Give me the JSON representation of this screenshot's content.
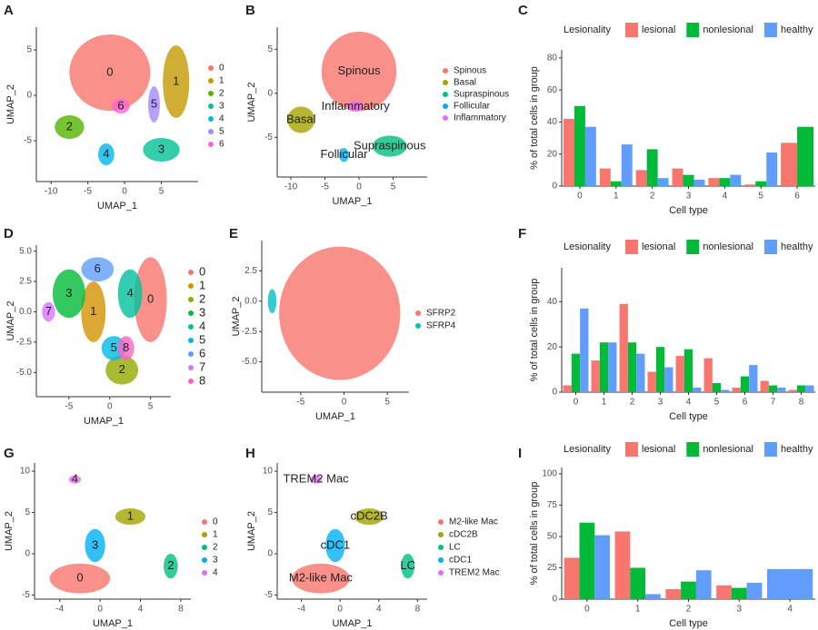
{
  "chart_data": [
    {
      "type": "scatter",
      "panel_label": "A",
      "xlabel": "UMAP_1",
      "ylabel": "UMAP_2",
      "xlim": [
        -12,
        10
      ],
      "ylim": [
        -9.5,
        7.5
      ],
      "xticks": [
        -10,
        -5,
        0,
        5
      ],
      "yticks": [
        -5,
        0,
        5
      ],
      "labels_on_plot": true,
      "series": [
        {
          "name": "0",
          "color": "#F8766D",
          "x": [
            -2
          ],
          "y": [
            2.5
          ],
          "spread": [
            5.5,
            4.2
          ]
        },
        {
          "name": "1",
          "color": "#C49A00",
          "x": [
            7
          ],
          "y": [
            1.5
          ],
          "spread": [
            1.8,
            4
          ]
        },
        {
          "name": "2",
          "color": "#53B400",
          "x": [
            -7.5
          ],
          "y": [
            -3.5
          ],
          "spread": [
            2,
            1.3
          ]
        },
        {
          "name": "3",
          "color": "#00C094",
          "x": [
            5
          ],
          "y": [
            -6
          ],
          "spread": [
            2.5,
            1.3
          ]
        },
        {
          "name": "4",
          "color": "#00B6EB",
          "x": [
            -2.5
          ],
          "y": [
            -6.5
          ],
          "spread": [
            1.1,
            1.2
          ]
        },
        {
          "name": "5",
          "color": "#A58AFF",
          "x": [
            4
          ],
          "y": [
            -1
          ],
          "spread": [
            0.8,
            2
          ]
        },
        {
          "name": "6",
          "color": "#FB61D7",
          "x": [
            -0.5
          ],
          "y": [
            -1.2
          ],
          "spread": [
            1.2,
            0.8
          ]
        }
      ]
    },
    {
      "type": "scatter",
      "panel_label": "B",
      "xlabel": "UMAP_1",
      "ylabel": "UMAP_2",
      "xlim": [
        -12,
        10
      ],
      "ylim": [
        -9.5,
        7.5
      ],
      "xticks": [
        -10,
        -5,
        0,
        5
      ],
      "yticks": [
        -5,
        0,
        5
      ],
      "labels_on_plot": true,
      "series": [
        {
          "name": "Spinous",
          "color": "#F8766D",
          "x": [
            0
          ],
          "y": [
            2.5
          ],
          "spread": [
            5.5,
            4.5
          ]
        },
        {
          "name": "Basal",
          "color": "#A3A500",
          "x": [
            -8.5
          ],
          "y": [
            -3
          ],
          "spread": [
            2,
            1.5
          ]
        },
        {
          "name": "Supraspinous",
          "color": "#00BF7D",
          "x": [
            4.5
          ],
          "y": [
            -6
          ],
          "spread": [
            2.5,
            1.2
          ]
        },
        {
          "name": "Follicular",
          "color": "#00B0F6",
          "x": [
            -2.2
          ],
          "y": [
            -7
          ],
          "spread": [
            0.7,
            0.8
          ]
        },
        {
          "name": "Inflammatory",
          "color": "#E76BF3",
          "x": [
            -0.5
          ],
          "y": [
            -1.5
          ],
          "spread": [
            1.2,
            0.6
          ]
        }
      ]
    },
    {
      "type": "bar",
      "panel_label": "C",
      "xlabel": "Cell type",
      "ylabel": "% of total cells in group",
      "legend_title": "Lesionality",
      "categories": [
        "0",
        "1",
        "2",
        "3",
        "4",
        "5",
        "6"
      ],
      "ylim": [
        0,
        85
      ],
      "yticks": [
        0,
        20,
        40,
        60,
        80
      ],
      "series": [
        {
          "name": "lesional",
          "color": "#F8766D",
          "values": [
            42,
            11,
            10,
            11,
            5,
            1,
            27
          ]
        },
        {
          "name": "nonlesional",
          "color": "#00BA38",
          "values": [
            50,
            3,
            23,
            7,
            5,
            3,
            37
          ]
        },
        {
          "name": "healthy",
          "color": "#619CFF",
          "values": [
            37,
            26,
            5,
            4,
            7,
            21,
            null
          ]
        }
      ]
    },
    {
      "type": "scatter",
      "panel_label": "D",
      "xlabel": "UMAP_1",
      "ylabel": "UMAP_2",
      "xlim": [
        -9,
        7.5
      ],
      "ylim": [
        -7,
        5.5
      ],
      "xticks": [
        -5,
        0,
        5
      ],
      "yticks": [
        {
          "value": -5,
          "label": "-5.0"
        },
        {
          "value": -2.5,
          "label": "-2.5"
        },
        {
          "value": 0,
          "label": "0.0"
        },
        {
          "value": 2.5,
          "label": "2.5"
        },
        {
          "value": 5,
          "label": "5.0"
        }
      ],
      "labels_on_plot": true,
      "series": [
        {
          "name": "0",
          "color": "#F8766D",
          "x": [
            5
          ],
          "y": [
            1
          ],
          "spread": [
            2,
            3.5
          ]
        },
        {
          "name": "1",
          "color": "#D39200",
          "x": [
            -2
          ],
          "y": [
            0
          ],
          "spread": [
            1.5,
            2.5
          ]
        },
        {
          "name": "2",
          "color": "#93AA00",
          "x": [
            1.5
          ],
          "y": [
            -4.8
          ],
          "spread": [
            2,
            1.2
          ]
        },
        {
          "name": "3",
          "color": "#00BA38",
          "x": [
            -5
          ],
          "y": [
            1.5
          ],
          "spread": [
            2,
            2
          ]
        },
        {
          "name": "4",
          "color": "#00C19F",
          "x": [
            2.5
          ],
          "y": [
            1.5
          ],
          "spread": [
            1.5,
            2
          ]
        },
        {
          "name": "5",
          "color": "#00B9E3",
          "x": [
            0.5
          ],
          "y": [
            -3
          ],
          "spread": [
            1.5,
            1
          ]
        },
        {
          "name": "6",
          "color": "#619CFF",
          "x": [
            -1.5
          ],
          "y": [
            3.5
          ],
          "spread": [
            2,
            1
          ]
        },
        {
          "name": "7",
          "color": "#DB72FB",
          "x": [
            -7.5
          ],
          "y": [
            0
          ],
          "spread": [
            0.8,
            0.8
          ]
        },
        {
          "name": "8",
          "color": "#FF61C3",
          "x": [
            2
          ],
          "y": [
            -3
          ],
          "spread": [
            1,
            1
          ]
        }
      ]
    },
    {
      "type": "scatter",
      "panel_label": "E",
      "xlabel": "UMAP_1",
      "ylabel": "UMAP_2",
      "xlim": [
        -9.5,
        7.5
      ],
      "ylim": [
        -7.5,
        5
      ],
      "xticks": [
        -5,
        0,
        5
      ],
      "yticks": [
        {
          "value": -5,
          "label": "-5.0"
        },
        {
          "value": -2.5,
          "label": "-2.5"
        },
        {
          "value": 0,
          "label": "0.0"
        },
        {
          "value": 2.5,
          "label": "2.5"
        }
      ],
      "labels_on_plot": false,
      "series": [
        {
          "name": "SFRP2",
          "color": "#F8766D",
          "x": [
            -0.5
          ],
          "y": [
            -1
          ],
          "spread": [
            7,
            5.5
          ]
        },
        {
          "name": "SFRP4",
          "color": "#00BFC4",
          "x": [
            -8.3
          ],
          "y": [
            0
          ],
          "spread": [
            0.5,
            1
          ]
        }
      ]
    },
    {
      "type": "bar",
      "panel_label": "F",
      "xlabel": "Cell type",
      "ylabel": "% of total cells in group",
      "legend_title": "Lesionality",
      "categories": [
        "0",
        "1",
        "2",
        "3",
        "4",
        "5",
        "6",
        "7",
        "8"
      ],
      "ylim": [
        0,
        55
      ],
      "yticks": [
        0,
        20,
        40
      ],
      "series": [
        {
          "name": "lesional",
          "color": "#F8766D",
          "values": [
            3,
            14,
            39,
            9,
            16,
            15,
            2,
            5,
            1
          ]
        },
        {
          "name": "nonlesional",
          "color": "#00BA38",
          "values": [
            17,
            22,
            22,
            20,
            19,
            4,
            7,
            3,
            3
          ]
        },
        {
          "name": "healthy",
          "color": "#619CFF",
          "values": [
            37,
            22,
            17,
            11,
            2,
            1,
            12,
            2,
            3
          ]
        }
      ]
    },
    {
      "type": "scatter",
      "panel_label": "G",
      "xlabel": "UMAP_1",
      "ylabel": "UMAP_2",
      "xlim": [
        -6.5,
        9
      ],
      "ylim": [
        -5.5,
        11
      ],
      "xticks": [
        -4,
        0,
        4,
        8
      ],
      "yticks": [
        -5,
        0,
        5,
        10
      ],
      "labels_on_plot": true,
      "series": [
        {
          "name": "0",
          "color": "#F8766D",
          "x": [
            -2
          ],
          "y": [
            -3
          ],
          "spread": [
            3,
            1.8
          ]
        },
        {
          "name": "1",
          "color": "#A3A500",
          "x": [
            3
          ],
          "y": [
            4.5
          ],
          "spread": [
            1.5,
            1
          ]
        },
        {
          "name": "2",
          "color": "#00BF7D",
          "x": [
            7
          ],
          "y": [
            -1.5
          ],
          "spread": [
            0.7,
            1.5
          ]
        },
        {
          "name": "3",
          "color": "#00B0F6",
          "x": [
            -0.5
          ],
          "y": [
            1
          ],
          "spread": [
            1,
            2
          ]
        },
        {
          "name": "4",
          "color": "#E76BF3",
          "x": [
            -2.5
          ],
          "y": [
            9
          ],
          "spread": [
            0.6,
            0.5
          ]
        }
      ]
    },
    {
      "type": "scatter",
      "panel_label": "H",
      "xlabel": "UMAP_1",
      "ylabel": "UMAP_2",
      "xlim": [
        -6.5,
        9
      ],
      "ylim": [
        -5.5,
        11
      ],
      "xticks": [
        -4,
        0,
        4,
        8
      ],
      "yticks": [
        -5,
        0,
        5,
        10
      ],
      "labels_on_plot": true,
      "series": [
        {
          "name": "M2-like Mac",
          "color": "#F8766D",
          "x": [
            -2
          ],
          "y": [
            -3
          ],
          "spread": [
            3,
            1.8
          ]
        },
        {
          "name": "cDC2B",
          "color": "#A3A500",
          "x": [
            3
          ],
          "y": [
            4.5
          ],
          "spread": [
            1.5,
            1
          ]
        },
        {
          "name": "LC",
          "color": "#00BF7D",
          "x": [
            7
          ],
          "y": [
            -1.5
          ],
          "spread": [
            0.7,
            1.5
          ]
        },
        {
          "name": "cDC1",
          "color": "#00B0F6",
          "x": [
            -0.5
          ],
          "y": [
            1
          ],
          "spread": [
            1,
            2
          ]
        },
        {
          "name": "TREM2 Mac",
          "color": "#E76BF3",
          "x": [
            -2.5
          ],
          "y": [
            9
          ],
          "spread": [
            0.6,
            0.5
          ]
        }
      ]
    },
    {
      "type": "bar",
      "panel_label": "I",
      "xlabel": "Cell type",
      "ylabel": "% of total cells in group",
      "legend_title": "Lesionality",
      "categories": [
        "0",
        "1",
        "2",
        "3",
        "4"
      ],
      "ylim": [
        0,
        105
      ],
      "yticks": [
        0,
        25,
        50,
        75,
        100
      ],
      "series": [
        {
          "name": "lesional",
          "color": "#F8766D",
          "values": [
            33,
            54,
            8,
            11,
            null
          ]
        },
        {
          "name": "nonlesional",
          "color": "#00BA38",
          "values": [
            61,
            25,
            14,
            9,
            null
          ]
        },
        {
          "name": "healthy",
          "color": "#619CFF",
          "values": [
            51,
            4,
            23,
            13,
            24
          ]
        }
      ]
    }
  ]
}
